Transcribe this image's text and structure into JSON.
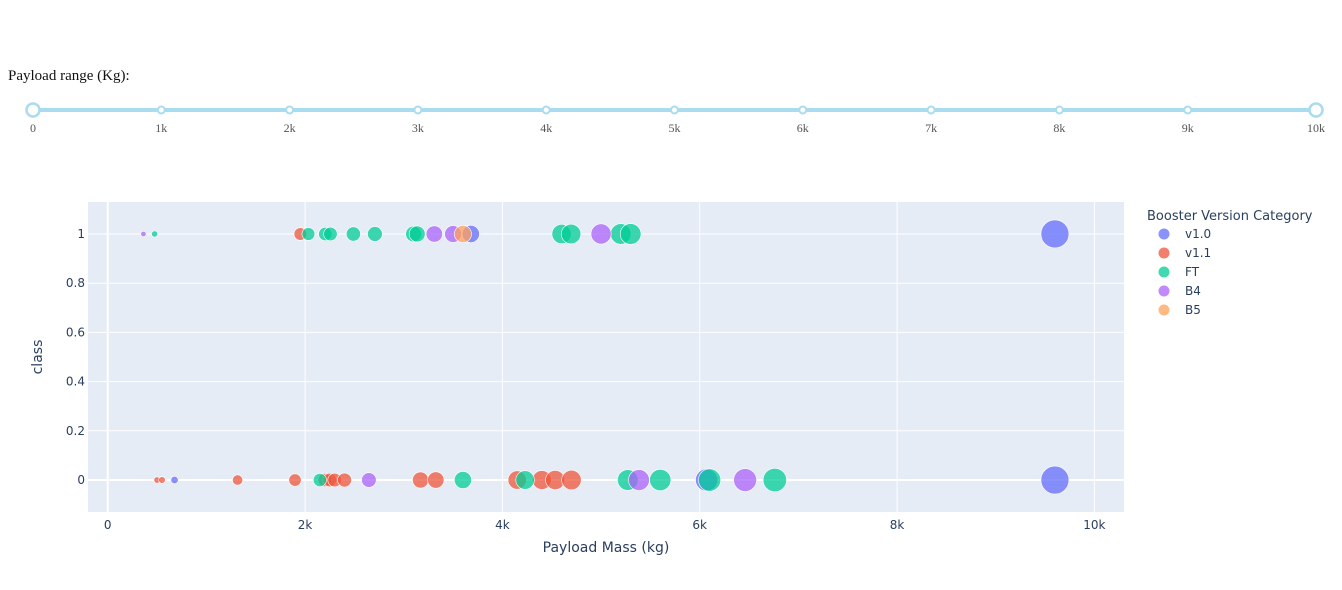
{
  "slider": {
    "label": "Payload range (Kg):",
    "min": 0,
    "max": 10000,
    "value": [
      0,
      10000
    ],
    "marks": [
      "0",
      "1k",
      "2k",
      "3k",
      "4k",
      "5k",
      "6k",
      "7k",
      "8k",
      "9k",
      "10k"
    ],
    "track_color": "#a8dcee",
    "handle_color": "#a8dcee"
  },
  "chart_data": {
    "type": "scatter",
    "xlabel": "Payload Mass (kg)",
    "ylabel": "class",
    "xlim": [
      -200,
      10300
    ],
    "ylim": [
      -0.13,
      1.13
    ],
    "x_ticks": [
      0,
      2000,
      4000,
      6000,
      8000,
      10000
    ],
    "x_tick_labels": [
      "0",
      "2k",
      "4k",
      "6k",
      "8k",
      "10k"
    ],
    "y_ticks": [
      0,
      0.2,
      0.4,
      0.6,
      0.8,
      1
    ],
    "y_tick_labels": [
      "0",
      "0.2",
      "0.4",
      "0.6",
      "0.8",
      "1"
    ],
    "legend_title": "Booster Version Category",
    "legend_position": "right",
    "grid": true,
    "series": [
      {
        "name": "v1.0",
        "color": "#636efa",
        "points": [
          {
            "x": 677,
            "y": 0
          },
          {
            "x": 6070,
            "y": 0
          },
          {
            "x": 9600,
            "y": 0
          },
          {
            "x": 3680,
            "y": 1
          },
          {
            "x": 9600,
            "y": 1
          }
        ]
      },
      {
        "name": "v1.1",
        "color": "#ef553b",
        "points": [
          {
            "x": 500,
            "y": 0
          },
          {
            "x": 550,
            "y": 0
          },
          {
            "x": 1316,
            "y": 0
          },
          {
            "x": 1898,
            "y": 0
          },
          {
            "x": 2200,
            "y": 0
          },
          {
            "x": 2250,
            "y": 0
          },
          {
            "x": 2300,
            "y": 0
          },
          {
            "x": 2400,
            "y": 0
          },
          {
            "x": 3170,
            "y": 0
          },
          {
            "x": 3325,
            "y": 0
          },
          {
            "x": 4150,
            "y": 0
          },
          {
            "x": 4400,
            "y": 0
          },
          {
            "x": 4535,
            "y": 0
          },
          {
            "x": 4700,
            "y": 0
          },
          {
            "x": 1952,
            "y": 1
          }
        ]
      },
      {
        "name": "FT",
        "color": "#00cc96",
        "points": [
          {
            "x": 475,
            "y": 1
          },
          {
            "x": 2034,
            "y": 1
          },
          {
            "x": 2205,
            "y": 1
          },
          {
            "x": 2257,
            "y": 1
          },
          {
            "x": 2490,
            "y": 1
          },
          {
            "x": 2708,
            "y": 1
          },
          {
            "x": 3100,
            "y": 1
          },
          {
            "x": 3136,
            "y": 1
          },
          {
            "x": 4600,
            "y": 1
          },
          {
            "x": 4696,
            "y": 1
          },
          {
            "x": 5200,
            "y": 1
          },
          {
            "x": 5300,
            "y": 1
          },
          {
            "x": 2150,
            "y": 0
          },
          {
            "x": 3600,
            "y": 0
          },
          {
            "x": 4230,
            "y": 0
          },
          {
            "x": 5271,
            "y": 0
          },
          {
            "x": 5600,
            "y": 0
          },
          {
            "x": 6100,
            "y": 0
          },
          {
            "x": 6761,
            "y": 0
          }
        ]
      },
      {
        "name": "B4",
        "color": "#ab63fa",
        "points": [
          {
            "x": 362,
            "y": 1
          },
          {
            "x": 3310,
            "y": 1
          },
          {
            "x": 3500,
            "y": 1
          },
          {
            "x": 5000,
            "y": 1
          },
          {
            "x": 2647,
            "y": 0
          },
          {
            "x": 5384,
            "y": 0
          },
          {
            "x": 6460,
            "y": 0
          }
        ]
      },
      {
        "name": "B5",
        "color": "#ffa15a",
        "points": [
          {
            "x": 3600,
            "y": 1
          }
        ]
      }
    ]
  }
}
